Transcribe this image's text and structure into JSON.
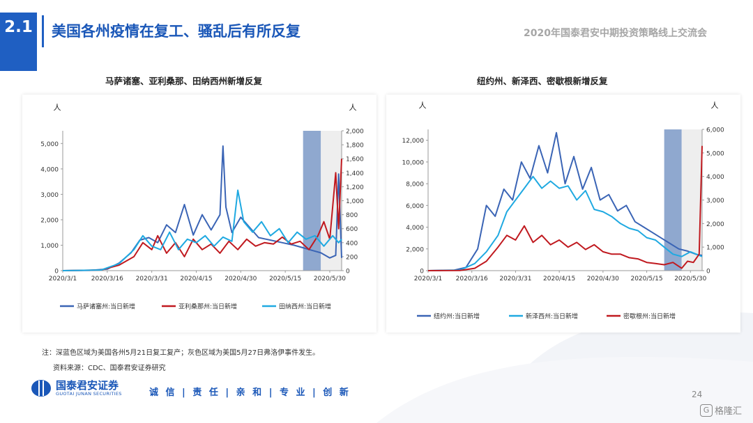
{
  "section_number": "2.1",
  "page_title": "美国各州疫情在复工、骚乱后有所反复",
  "page_subtitle": "2020年国泰君安中期投资策略线上交流会",
  "note_text": "注：深蓝色区域为美国各州5月21日复工复产；灰色区域为美国5月27日弗洛伊事件发生。",
  "source_text": "资料来源：CDC、国泰君安证券研究",
  "company_name": "国泰君安证券",
  "company_name_en": "GUOTAI JUNAN SECURITIES",
  "motto": "诚 信 | 责 任 | 亲 和 | 专 业 | 创 新",
  "page_number": "24",
  "watermark": "格隆汇",
  "colors": {
    "brand": "#1f5fc2",
    "shade_blue": "#8fa8cf",
    "shade_grey": "#eeeeee"
  },
  "chart_data": [
    {
      "type": "line",
      "title": "马萨诸塞、亚利桑那、田纳西州新增反复",
      "ylabel_left": "人",
      "ylabel_right": "人",
      "ylim_left": [
        0,
        5500
      ],
      "ylim_right": [
        0,
        2000
      ],
      "yticks_left": [
        "0",
        "1,000",
        "2,000",
        "3,000",
        "4,000",
        "5,000"
      ],
      "yticks_right": [
        "0",
        "200",
        "400",
        "600",
        "800",
        "1,000",
        "1,200",
        "1,400",
        "1,600",
        "1,800",
        "2,000"
      ],
      "x_start": "2020-03-01",
      "x_end": "2020-06-03",
      "xticks": [
        "2020/3/1",
        "2020/3/16",
        "2020/3/31",
        "2020/4/15",
        "2020/4/30",
        "2020/5/15",
        "2020/5/30"
      ],
      "shades": [
        {
          "from": "2020-05-21",
          "to": "2020-05-27",
          "color": "#8fa8cf"
        },
        {
          "from": "2020-05-27",
          "to": "2020-06-03",
          "color": "#eeeeee"
        }
      ],
      "series": [
        {
          "name": "马萨诸塞州:当日新增",
          "axis": "left",
          "color": "#3a64b5",
          "x": [
            "2020-03-01",
            "2020-03-10",
            "2020-03-16",
            "2020-03-20",
            "2020-03-24",
            "2020-03-27",
            "2020-03-30",
            "2020-04-02",
            "2020-04-05",
            "2020-04-08",
            "2020-04-11",
            "2020-04-14",
            "2020-04-17",
            "2020-04-20",
            "2020-04-23",
            "2020-04-24",
            "2020-04-25",
            "2020-04-27",
            "2020-04-30",
            "2020-05-03",
            "2020-05-06",
            "2020-05-10",
            "2020-05-14",
            "2020-05-18",
            "2020-05-21",
            "2020-05-24",
            "2020-05-27",
            "2020-05-30",
            "2020-06-01",
            "2020-06-02",
            "2020-06-03"
          ],
          "y": [
            0,
            10,
            60,
            300,
            700,
            1200,
            1300,
            1100,
            1800,
            1500,
            2600,
            1400,
            2200,
            1600,
            2200,
            4900,
            2500,
            1500,
            2100,
            1700,
            1300,
            1200,
            1100,
            1000,
            900,
            800,
            700,
            500,
            600,
            3800,
            500
          ]
        },
        {
          "name": "亚利桑那州:当日新增",
          "axis": "right",
          "color": "#c0191f",
          "x": [
            "2020-03-01",
            "2020-03-14",
            "2020-03-20",
            "2020-03-25",
            "2020-03-28",
            "2020-03-31",
            "2020-04-02",
            "2020-04-05",
            "2020-04-08",
            "2020-04-11",
            "2020-04-14",
            "2020-04-17",
            "2020-04-20",
            "2020-04-23",
            "2020-04-26",
            "2020-04-29",
            "2020-05-02",
            "2020-05-05",
            "2020-05-08",
            "2020-05-11",
            "2020-05-14",
            "2020-05-17",
            "2020-05-20",
            "2020-05-23",
            "2020-05-26",
            "2020-05-28",
            "2020-05-30",
            "2020-06-01",
            "2020-06-02",
            "2020-06-03"
          ],
          "y": [
            0,
            10,
            80,
            200,
            400,
            300,
            500,
            250,
            400,
            200,
            450,
            300,
            380,
            250,
            420,
            300,
            450,
            350,
            400,
            380,
            480,
            380,
            420,
            300,
            500,
            700,
            450,
            1400,
            600,
            1600
          ]
        },
        {
          "name": "田纳西州:当日新增",
          "axis": "right",
          "color": "#1fa9e1",
          "x": [
            "2020-03-01",
            "2020-03-14",
            "2020-03-20",
            "2020-03-25",
            "2020-03-28",
            "2020-03-31",
            "2020-04-03",
            "2020-04-06",
            "2020-04-09",
            "2020-04-12",
            "2020-04-15",
            "2020-04-18",
            "2020-04-21",
            "2020-04-24",
            "2020-04-27",
            "2020-04-29",
            "2020-05-01",
            "2020-05-04",
            "2020-05-07",
            "2020-05-10",
            "2020-05-13",
            "2020-05-16",
            "2020-05-19",
            "2020-05-22",
            "2020-05-25",
            "2020-05-28",
            "2020-05-31",
            "2020-06-02",
            "2020-06-03"
          ],
          "y": [
            0,
            10,
            100,
            300,
            500,
            350,
            300,
            550,
            300,
            450,
            400,
            500,
            350,
            480,
            420,
            1150,
            700,
            550,
            700,
            500,
            600,
            400,
            550,
            450,
            500,
            350,
            500,
            400,
            450
          ]
        }
      ]
    },
    {
      "type": "line",
      "title": "纽约州、新泽西、密歇根新增反复",
      "ylabel_left": "人",
      "ylabel_right": "人",
      "ylim_left": [
        0,
        13000
      ],
      "ylim_right": [
        0,
        6000
      ],
      "yticks_left": [
        "0",
        "2,000",
        "4,000",
        "6,000",
        "8,000",
        "10,000",
        "12,000"
      ],
      "yticks_right": [
        "0",
        "1,000",
        "2,000",
        "3,000",
        "4,000",
        "5,000",
        "6,000"
      ],
      "x_start": "2020-03-01",
      "x_end": "2020-06-03",
      "xticks": [
        "2020/3/1",
        "2020/3/16",
        "2020/3/31",
        "2020/4/15",
        "2020/4/30",
        "2020/5/15",
        "2020/5/30"
      ],
      "shades": [
        {
          "from": "2020-05-21",
          "to": "2020-05-27",
          "color": "#8fa8cf"
        },
        {
          "from": "2020-05-27",
          "to": "2020-06-03",
          "color": "#eeeeee"
        }
      ],
      "series": [
        {
          "name": "纽约州:当日新增",
          "axis": "left",
          "color": "#3a64b5",
          "x": [
            "2020-03-01",
            "2020-03-10",
            "2020-03-14",
            "2020-03-18",
            "2020-03-21",
            "2020-03-24",
            "2020-03-27",
            "2020-03-30",
            "2020-04-02",
            "2020-04-05",
            "2020-04-08",
            "2020-04-11",
            "2020-04-14",
            "2020-04-17",
            "2020-04-20",
            "2020-04-23",
            "2020-04-26",
            "2020-04-29",
            "2020-05-02",
            "2020-05-05",
            "2020-05-08",
            "2020-05-11",
            "2020-05-14",
            "2020-05-17",
            "2020-05-20",
            "2020-05-23",
            "2020-05-26",
            "2020-05-29",
            "2020-06-01",
            "2020-06-03"
          ],
          "y": [
            0,
            50,
            300,
            2000,
            6000,
            5000,
            7500,
            6500,
            10000,
            8500,
            11500,
            9000,
            12700,
            8000,
            10500,
            7500,
            9500,
            6500,
            7000,
            5500,
            6000,
            4500,
            4000,
            3500,
            3000,
            2500,
            2000,
            1800,
            1500,
            1400
          ]
        },
        {
          "name": "新泽西州:当日新增",
          "axis": "right",
          "color": "#1fa9e1",
          "x": [
            "2020-03-01",
            "2020-03-12",
            "2020-03-17",
            "2020-03-21",
            "2020-03-25",
            "2020-03-28",
            "2020-03-31",
            "2020-04-03",
            "2020-04-06",
            "2020-04-09",
            "2020-04-12",
            "2020-04-15",
            "2020-04-18",
            "2020-04-21",
            "2020-04-24",
            "2020-04-27",
            "2020-04-30",
            "2020-05-03",
            "2020-05-06",
            "2020-05-09",
            "2020-05-12",
            "2020-05-15",
            "2020-05-18",
            "2020-05-21",
            "2020-05-24",
            "2020-05-27",
            "2020-05-30",
            "2020-06-01",
            "2020-06-03"
          ],
          "y": [
            0,
            20,
            300,
            800,
            1500,
            2500,
            3000,
            3500,
            4000,
            3500,
            3800,
            3500,
            3600,
            3000,
            3400,
            2600,
            2500,
            2300,
            2000,
            1800,
            1700,
            1400,
            1300,
            1000,
            700,
            600,
            800,
            700,
            600
          ]
        },
        {
          "name": "密歇根州:当日新增",
          "axis": "right",
          "color": "#c0191f",
          "x": [
            "2020-03-01",
            "2020-03-12",
            "2020-03-17",
            "2020-03-21",
            "2020-03-25",
            "2020-03-28",
            "2020-03-31",
            "2020-04-03",
            "2020-04-06",
            "2020-04-09",
            "2020-04-12",
            "2020-04-15",
            "2020-04-18",
            "2020-04-21",
            "2020-04-24",
            "2020-04-27",
            "2020-04-30",
            "2020-05-03",
            "2020-05-06",
            "2020-05-09",
            "2020-05-12",
            "2020-05-15",
            "2020-05-18",
            "2020-05-21",
            "2020-05-24",
            "2020-05-27",
            "2020-05-29",
            "2020-05-31",
            "2020-06-02",
            "2020-06-03"
          ],
          "y": [
            0,
            5,
            100,
            400,
            1000,
            1500,
            1300,
            1900,
            1200,
            1500,
            1100,
            1300,
            1000,
            1200,
            900,
            1100,
            800,
            700,
            700,
            550,
            500,
            350,
            300,
            250,
            350,
            100,
            400,
            350,
            700,
            5300
          ]
        }
      ]
    }
  ]
}
